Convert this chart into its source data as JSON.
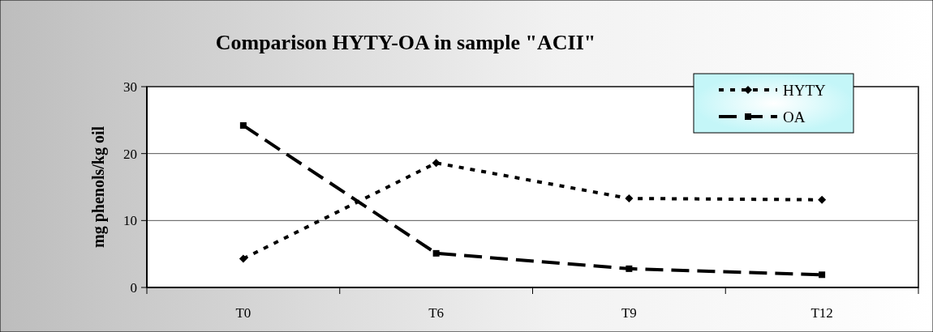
{
  "chart_data": {
    "type": "line",
    "title": "Comparison HYTY-OA in sample \"ACII\"",
    "ylabel": "mg phenols/kg oil",
    "categories": [
      "T0",
      "T6",
      "T9",
      "T12"
    ],
    "series": [
      {
        "name": "HYTY",
        "color": "#000000",
        "values": [
          4.3,
          18.6,
          13.3,
          13.1
        ],
        "line_style": "dotted",
        "marker": "diamond"
      },
      {
        "name": "OA",
        "color": "#000000",
        "values": [
          24.2,
          5.1,
          2.8,
          1.9
        ],
        "line_style": "dashed",
        "marker": "square"
      }
    ],
    "ylim": [
      0,
      30
    ],
    "yticks": [
      0,
      10,
      20,
      30
    ],
    "grid": "y",
    "legend": "top right"
  }
}
